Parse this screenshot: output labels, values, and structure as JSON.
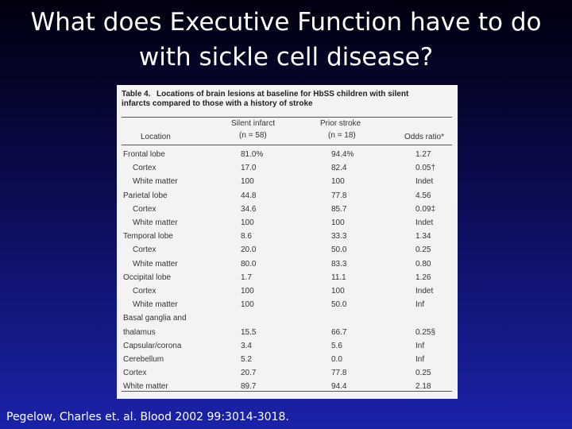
{
  "title": [
    "What does Executive Function have to do",
    "with sickle cell disease?"
  ],
  "table": {
    "caption_label": "Table 4.",
    "caption_text": [
      "Locations of brain lesions at baseline for HbSS children with silent",
      "infarcts compared to those with a history of stroke"
    ],
    "header": {
      "location": "Location",
      "silent": [
        "Silent infarct",
        "(n = 58)"
      ],
      "prior": [
        "Prior stroke",
        "(n = 18)"
      ],
      "odds": "Odds ratio*"
    },
    "regions": [
      {
        "name": [
          "Frontal lobe"
        ],
        "values": [
          "81.0%",
          "94.4%",
          "1.27"
        ],
        "parts": [
          {
            "name": "Cortex",
            "values": [
              "17.0",
              "82.4",
              "0.05†"
            ]
          },
          {
            "name": "White matter",
            "values": [
              "100",
              "100",
              "Indet"
            ]
          }
        ]
      },
      {
        "name": [
          "Parietal lobe"
        ],
        "values": [
          "44.8",
          "77.8",
          "4.56"
        ],
        "parts": [
          {
            "name": "Cortex",
            "values": [
              "34.6",
              "85.7",
              "0.09‡"
            ]
          },
          {
            "name": "White matter",
            "values": [
              "100",
              "100",
              "Indet"
            ]
          }
        ]
      },
      {
        "name": [
          "Temporal lobe"
        ],
        "values": [
          "8.6",
          "33.3",
          "1.34"
        ],
        "parts": [
          {
            "name": "Cortex",
            "values": [
              "20.0",
              "50.0",
              "0.25"
            ]
          },
          {
            "name": "White matter",
            "values": [
              "80.0",
              "83.3",
              "0.80"
            ]
          }
        ]
      },
      {
        "name": [
          "Occipital lobe"
        ],
        "values": [
          "1.7",
          "11.1",
          "1.26"
        ],
        "parts": [
          {
            "name": "Cortex",
            "values": [
              "100",
              "100",
              "Indet"
            ]
          },
          {
            "name": "White matter",
            "values": [
              "100",
              "50.0",
              "Inf"
            ]
          }
        ]
      },
      {
        "name": [
          "Basal ganglia and",
          "thalamus"
        ],
        "values": [
          "15.5",
          "66.7",
          "0.25§"
        ]
      },
      {
        "name": [
          "Capsular/corona"
        ],
        "values": [
          "3.4",
          "5.6",
          "Inf"
        ]
      },
      {
        "name": [
          "Cerebellum"
        ],
        "values": [
          "5.2",
          "0.0",
          "Inf"
        ]
      },
      {
        "name": [
          "Cortex"
        ],
        "values": [
          "20.7",
          "77.8",
          "0.25"
        ]
      },
      {
        "name": [
          "White matter"
        ],
        "values": [
          "89.7",
          "94.4",
          "2.18"
        ]
      }
    ]
  },
  "citation": "Pegelow, Charles et. al. Blood 2002 99:3014-3018."
}
